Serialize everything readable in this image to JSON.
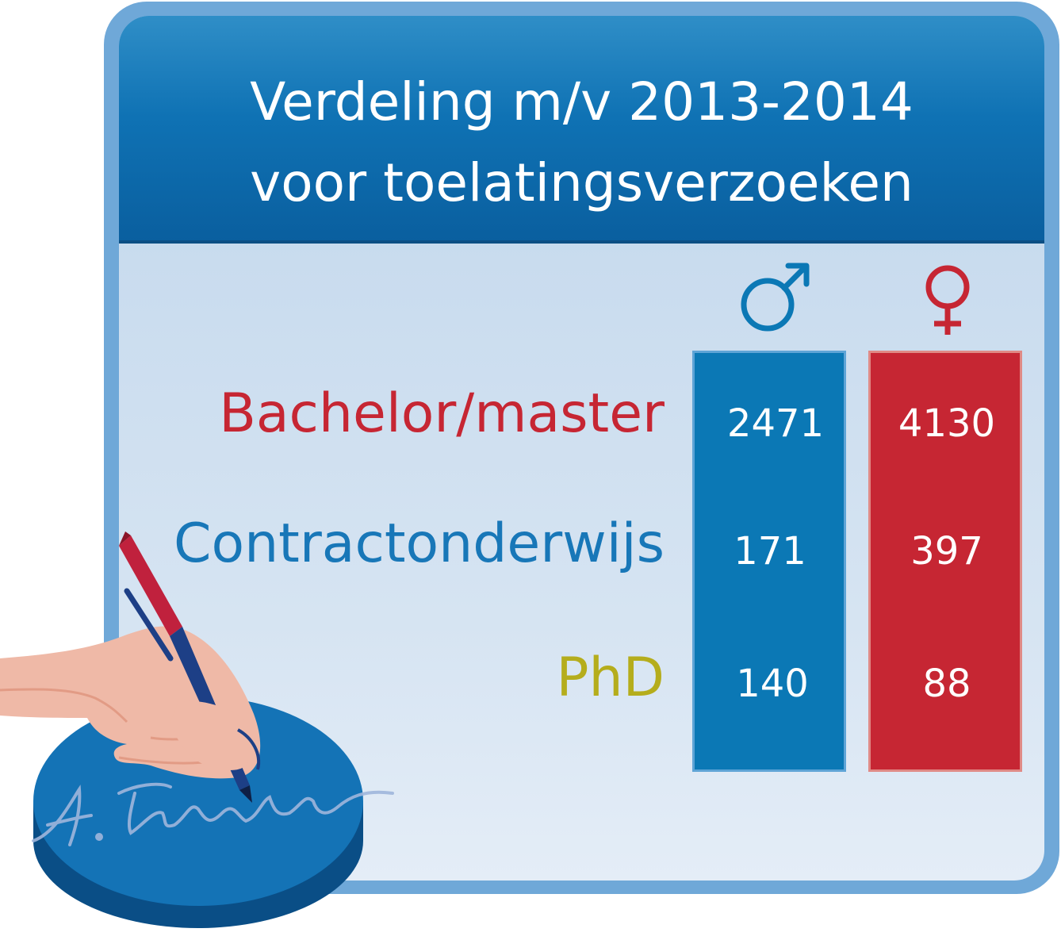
{
  "title": {
    "line1": "Verdeling m/v 2013-2014",
    "line2": "voor toelatingsverzoeken"
  },
  "columns": {
    "male": {
      "icon": "male-symbol-icon",
      "color": "#0b78b5"
    },
    "female": {
      "icon": "female-symbol-icon",
      "color": "#c62633"
    }
  },
  "rows": [
    {
      "label": "Bachelor/master",
      "label_color": "#c62633",
      "male": "2471",
      "female": "4130"
    },
    {
      "label": "Contractonderwijs",
      "label_color": "#1877b8",
      "male": "171",
      "female": "397"
    },
    {
      "label": "PhD",
      "label_color": "#b5ad1c",
      "male": "140",
      "female": "88"
    }
  ],
  "illustration": {
    "icon": "hand-signing-with-pen-icon",
    "signature": "A. Einstein"
  }
}
